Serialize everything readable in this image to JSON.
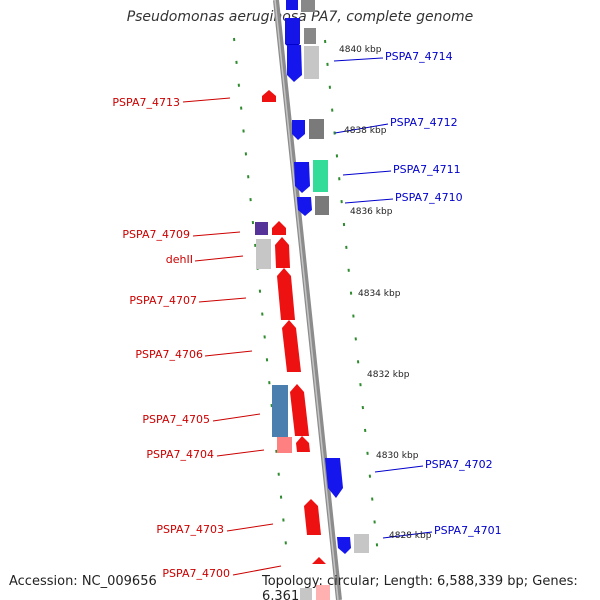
{
  "title": "Pseudomonas aeruginosa PA7, complete genome",
  "footer": {
    "accession": "Accession: NC_009656",
    "topology": "Topology: circular; Length: 6,588,339 bp; Genes: 6,361"
  },
  "colors": {
    "backbone": "#909090",
    "tick": "#2e8b2e",
    "forward_gene": "#ff0000",
    "reverse_gene": "#0000ff",
    "forward_label": "#cc0000",
    "reverse_label": "#0000cc",
    "pseudo_gray": "#9a9a9a",
    "light_gray": "#c8c8c8",
    "green_gene": "#33dd99",
    "steel_blue": "#4a7fb0",
    "pink": "#ff8080",
    "purple": "#553399"
  },
  "scale_labels": [
    "4840 kbp",
    "4838 kbp",
    "4836 kbp",
    "4834 kbp",
    "4832 kbp",
    "4830 kbp",
    "4828 kbp"
  ],
  "gene_labels_forward": [
    "PSPA7_4713",
    "PSPA7_4709",
    "dehII",
    "PSPA7_4707",
    "PSPA7_4706",
    "PSPA7_4705",
    "PSPA7_4704",
    "PSPA7_4703",
    "PSPA7_4700"
  ],
  "gene_labels_reverse": [
    "PSPA7_4714",
    "PSPA7_4712",
    "PSPA7_4711",
    "PSPA7_4710",
    "PSPA7_4702",
    "PSPA7_4701"
  ]
}
